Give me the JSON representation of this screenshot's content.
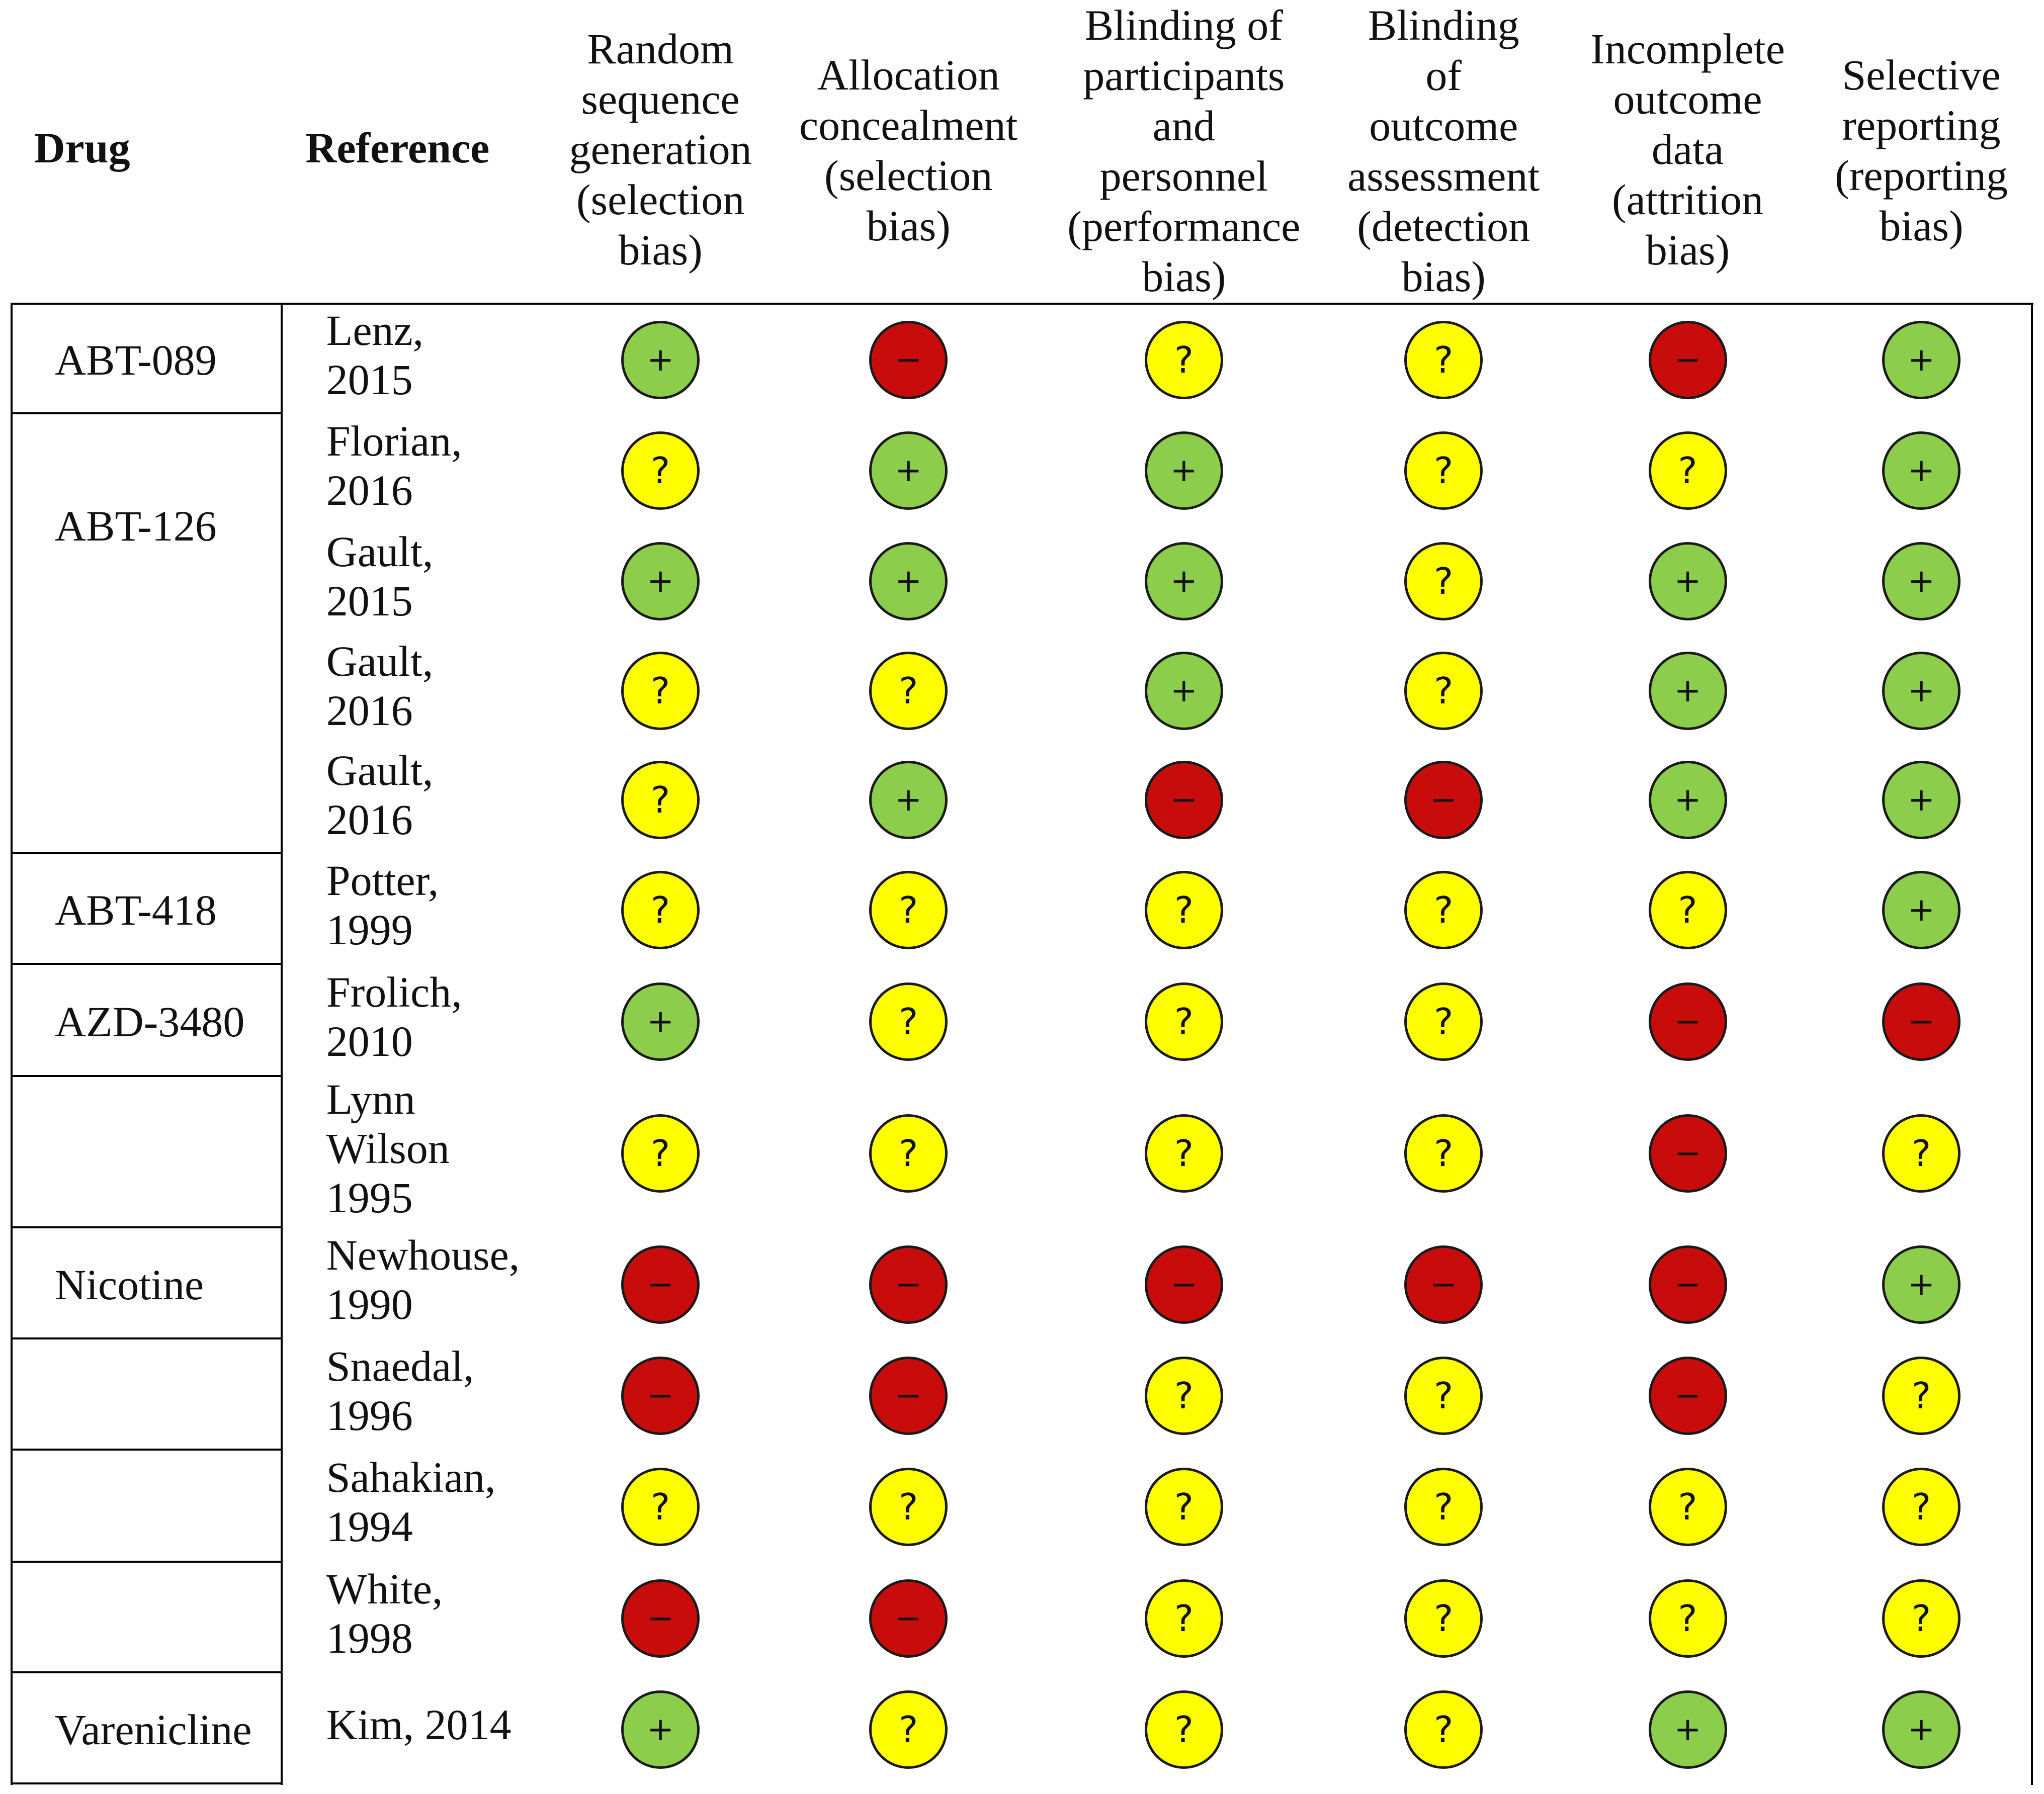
{
  "chart_data": {
    "type": "table",
    "title": "",
    "columns": [
      {
        "key": "drug",
        "label": "Drug"
      },
      {
        "key": "reference",
        "label": "Reference"
      },
      {
        "key": "random_sequence",
        "label": "Random\nsequence\ngeneration\n(selection\nbias)"
      },
      {
        "key": "allocation",
        "label": "Allocation\nconcealment\n(selection\nbias)"
      },
      {
        "key": "blinding_participants",
        "label": "Blinding of\nparticipants\nand\npersonnel\n(performance\nbias)"
      },
      {
        "key": "blinding_outcome",
        "label": "Blinding\nof\noutcome\nassessment\n(detection\nbias)"
      },
      {
        "key": "incomplete_outcome",
        "label": "Incomplete\noutcome\ndata\n(attrition\nbias)"
      },
      {
        "key": "selective_reporting",
        "label": "Selective\nreporting\n(reporting\nbias)"
      }
    ],
    "legend": {
      "low": {
        "symbol": "+",
        "color": "#8ccd4b"
      },
      "unclear": {
        "symbol": "?",
        "color": "#fefe00"
      },
      "high": {
        "symbol": "−",
        "color": "#c80c0c"
      }
    },
    "drug_groups": [
      {
        "drug": "ABT-089",
        "rows": 1
      },
      {
        "drug": "ABT-126",
        "rows": 4
      },
      {
        "drug": "ABT-418",
        "rows": 1
      },
      {
        "drug": "AZD-3480",
        "rows": 1
      },
      {
        "drug": "",
        "rows": 1
      },
      {
        "drug": "Nicotine",
        "rows": 1
      },
      {
        "drug": "",
        "rows": 1
      },
      {
        "drug": "",
        "rows": 1
      },
      {
        "drug": "",
        "rows": 1
      },
      {
        "drug": "Varenicline",
        "rows": 1
      }
    ],
    "rows": [
      {
        "reference": "Lenz,\n2015",
        "ratings": [
          "low",
          "high",
          "unclear",
          "unclear",
          "high",
          "low"
        ]
      },
      {
        "reference": "Florian,\n2016",
        "ratings": [
          "unclear",
          "low",
          "low",
          "unclear",
          "unclear",
          "low"
        ]
      },
      {
        "reference": "Gault,\n2015",
        "ratings": [
          "low",
          "low",
          "low",
          "unclear",
          "low",
          "low"
        ]
      },
      {
        "reference": " Gault,\n2016",
        "ratings": [
          "unclear",
          "unclear",
          "low",
          "unclear",
          "low",
          "low"
        ]
      },
      {
        "reference": "Gault,\n2016",
        "ratings": [
          "unclear",
          "low",
          "high",
          "high",
          "low",
          "low"
        ]
      },
      {
        "reference": "Potter,\n1999",
        "ratings": [
          "unclear",
          "unclear",
          "unclear",
          "unclear",
          "unclear",
          "low"
        ]
      },
      {
        "reference": "Frolich,\n2010",
        "ratings": [
          "low",
          "unclear",
          "unclear",
          "unclear",
          "high",
          "high"
        ]
      },
      {
        "reference": "Lynn\nWilson\n1995",
        "ratings": [
          "unclear",
          "unclear",
          "unclear",
          "unclear",
          "high",
          "unclear"
        ]
      },
      {
        "reference": "Newhouse,\n1990",
        "ratings": [
          "high",
          "high",
          "high",
          "high",
          "high",
          "low"
        ]
      },
      {
        "reference": "Snaedal,\n1996",
        "ratings": [
          "high",
          "high",
          "unclear",
          "unclear",
          "high",
          "unclear"
        ]
      },
      {
        "reference": "Sahakian,\n1994",
        "ratings": [
          "unclear",
          "unclear",
          "unclear",
          "unclear",
          "unclear",
          "unclear"
        ]
      },
      {
        "reference": "White,\n1998",
        "ratings": [
          "high",
          "high",
          "unclear",
          "unclear",
          "unclear",
          "unclear"
        ]
      },
      {
        "reference": "Kim, 2014",
        "ratings": [
          "low",
          "unclear",
          "unclear",
          "unclear",
          "low",
          "low"
        ]
      }
    ]
  }
}
